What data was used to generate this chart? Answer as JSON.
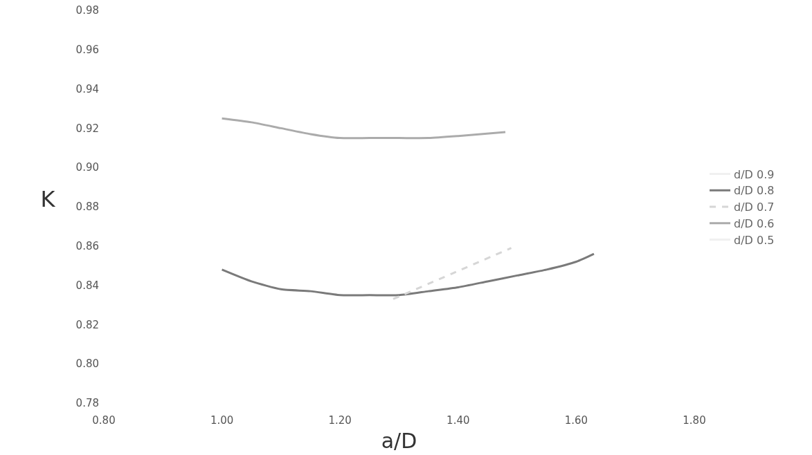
{
  "chart_data": {
    "type": "line",
    "xlabel": "a/D",
    "ylabel": "K",
    "xlim": [
      0.8,
      1.8
    ],
    "xticks": [
      {
        "value": 0.8,
        "label": "0.80"
      },
      {
        "value": 1.0,
        "label": "1.00"
      },
      {
        "value": 1.2,
        "label": "1.20"
      },
      {
        "value": 1.4,
        "label": "1.40"
      },
      {
        "value": 1.6,
        "label": "1.60"
      },
      {
        "value": 1.8,
        "label": "1.80"
      }
    ],
    "ylim": [
      0.78,
      0.98
    ],
    "yticks": [
      {
        "value": 0.78,
        "label": "0.78"
      },
      {
        "value": 0.8,
        "label": "0.80"
      },
      {
        "value": 0.82,
        "label": "0.82"
      },
      {
        "value": 0.84,
        "label": "0.84"
      },
      {
        "value": 0.86,
        "label": "0.86"
      },
      {
        "value": 0.88,
        "label": "0.88"
      },
      {
        "value": 0.9,
        "label": "0.90"
      },
      {
        "value": 0.92,
        "label": "0.92"
      },
      {
        "value": 0.94,
        "label": "0.94"
      },
      {
        "value": 0.96,
        "label": "0.96"
      },
      {
        "value": 0.98,
        "label": "0.98"
      }
    ],
    "grid": false,
    "legend": "right",
    "marker": "none",
    "series": [
      {
        "name": "d/D 0.9",
        "color": "#f0f0f0"
      },
      {
        "name": "d/D 0.8",
        "color": "#7a7a7a",
        "x": [
          1.0,
          1.05,
          1.1,
          1.15,
          1.2,
          1.25,
          1.3,
          1.35,
          1.4,
          1.45,
          1.5,
          1.55,
          1.6,
          1.63
        ],
        "values": [
          0.848,
          0.842,
          0.838,
          0.837,
          0.835,
          0.835,
          0.835,
          0.837,
          0.839,
          0.842,
          0.845,
          0.848,
          0.852,
          0.856
        ]
      },
      {
        "name": "d/D 0.7",
        "color": "#d6d6d6",
        "line_style": "dashed",
        "x": [
          1.29,
          1.39,
          1.49
        ],
        "values": [
          0.833,
          0.846,
          0.859
        ]
      },
      {
        "name": "d/D 0.6",
        "color": "#ababab",
        "x": [
          1.0,
          1.05,
          1.1,
          1.15,
          1.2,
          1.25,
          1.3,
          1.35,
          1.4,
          1.48
        ],
        "values": [
          0.925,
          0.923,
          0.92,
          0.917,
          0.915,
          0.915,
          0.915,
          0.915,
          0.916,
          0.918
        ]
      },
      {
        "name": "d/D 0.5",
        "color": "#f0f0f0"
      }
    ]
  }
}
